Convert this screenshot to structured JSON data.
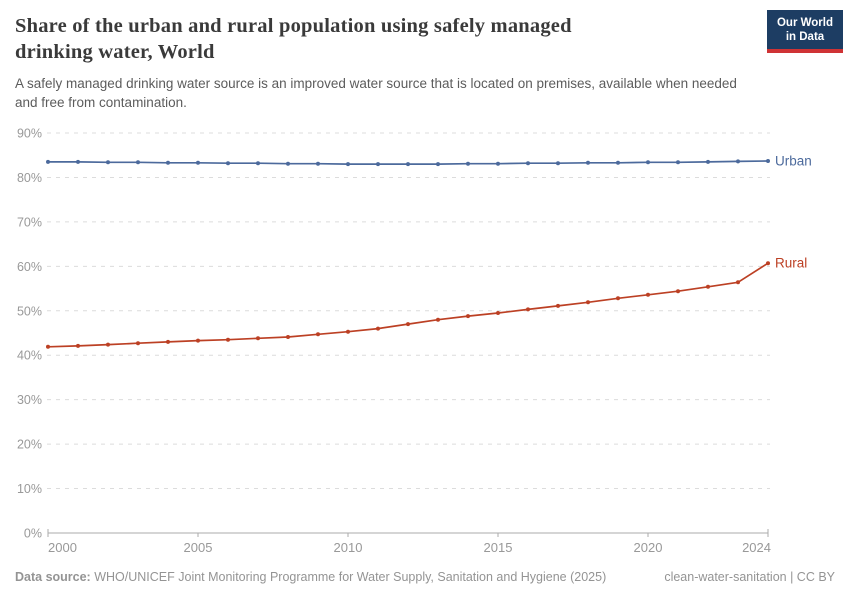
{
  "header": {
    "title_lines": [
      "Share of the urban and rural population using safely managed",
      "drinking water, World"
    ],
    "subtitle_lines": [
      "A safely managed drinking water source is an improved water source that is located on premises, available when needed",
      "and free from contamination."
    ],
    "logo": {
      "line1": "Our World",
      "line2": "in Data"
    }
  },
  "footer": {
    "source_label": "Data source:",
    "source_text": "WHO/UNICEF Joint Monitoring Programme for Water Supply, Sanitation and Hygiene (2025)",
    "license_text": "clean-water-sanitation | CC BY"
  },
  "chart_data": {
    "type": "line",
    "title": "Share of the urban and rural population using safely managed drinking water, World",
    "x": [
      2000,
      2001,
      2002,
      2003,
      2004,
      2005,
      2006,
      2007,
      2008,
      2009,
      2010,
      2011,
      2012,
      2013,
      2014,
      2015,
      2016,
      2017,
      2018,
      2019,
      2020,
      2021,
      2022,
      2023,
      2024
    ],
    "series": [
      {
        "name": "Urban",
        "color": "#4C6A9C",
        "values": [
          83.5,
          83.5,
          83.4,
          83.4,
          83.3,
          83.3,
          83.2,
          83.2,
          83.1,
          83.1,
          83.0,
          83.0,
          83.0,
          83.0,
          83.1,
          83.1,
          83.2,
          83.2,
          83.3,
          83.3,
          83.4,
          83.4,
          83.5,
          83.6,
          83.7
        ]
      },
      {
        "name": "Rural",
        "color": "#BC4024",
        "values": [
          41.9,
          42.1,
          42.4,
          42.7,
          43.0,
          43.3,
          43.5,
          43.8,
          44.1,
          44.7,
          45.3,
          46.0,
          47.0,
          48.0,
          48.8,
          49.5,
          50.3,
          51.1,
          51.9,
          52.8,
          53.6,
          54.4,
          55.4,
          56.4,
          60.7
        ]
      }
    ],
    "xlabel": "",
    "ylabel": "",
    "ylim": [
      0,
      90
    ],
    "yticks": [
      0,
      10,
      20,
      30,
      40,
      50,
      60,
      70,
      80,
      90
    ],
    "ytick_suffix": "%",
    "xticks": [
      2000,
      2005,
      2010,
      2015,
      2020,
      2024
    ],
    "grid": "horizontal-dashed",
    "legend_position": "line-end-labels",
    "grid_color": "#dcdcdc",
    "axis_color": "#ababab",
    "tick_label_color": "#999999"
  }
}
